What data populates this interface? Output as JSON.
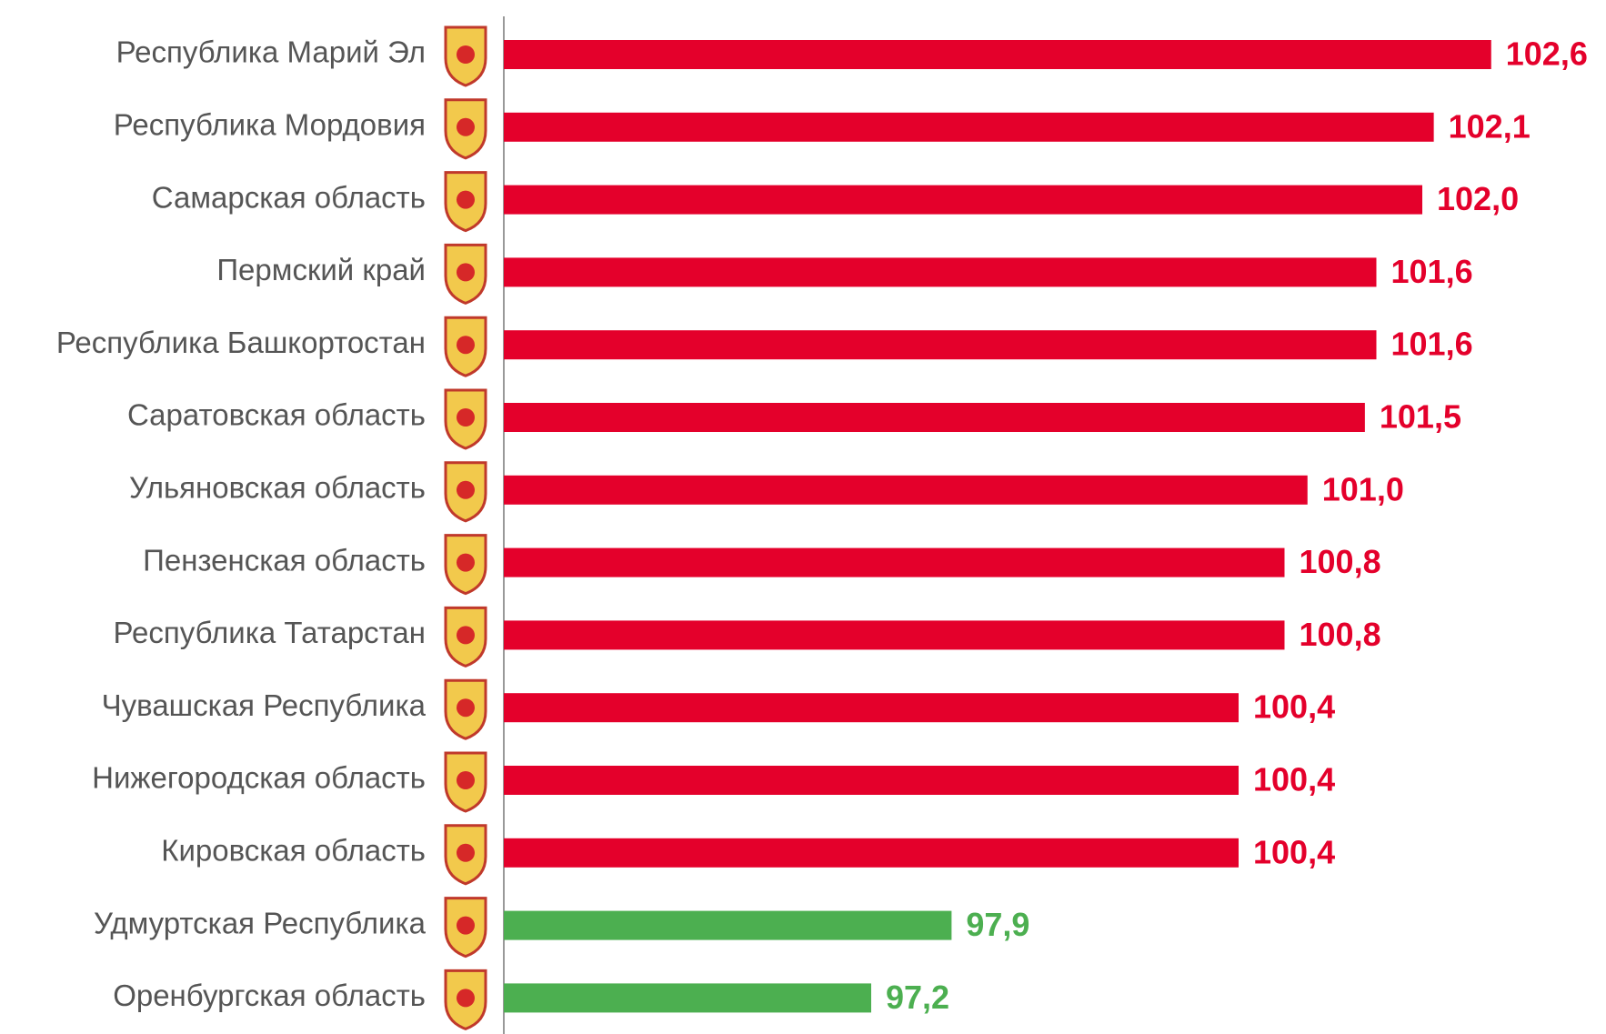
{
  "chart_data": {
    "type": "bar",
    "orientation": "horizontal",
    "categories": [
      "Республика Марий Эл",
      "Республика Мордовия",
      "Самарская область",
      "Пермский край",
      "Республика Башкортостан",
      "Саратовская область",
      "Ульяновская область",
      "Пензенская область",
      "Республика Татарстан",
      "Чувашская Республика",
      "Нижегородская область",
      "Кировская область",
      "Удмуртская Республика",
      "Оренбургская область"
    ],
    "values": [
      102.6,
      102.1,
      102.0,
      101.6,
      101.6,
      101.5,
      101.0,
      100.8,
      100.8,
      100.4,
      100.4,
      100.4,
      97.9,
      97.2
    ],
    "value_labels": [
      "102,6",
      "102,1",
      "102,0",
      "101,6",
      "101,6",
      "101,5",
      "101,0",
      "100,8",
      "100,8",
      "100,4",
      "100,4",
      "100,4",
      "97,9",
      "97,2"
    ],
    "colors": [
      "#e4002b",
      "#e4002b",
      "#e4002b",
      "#e4002b",
      "#e4002b",
      "#e4002b",
      "#e4002b",
      "#e4002b",
      "#e4002b",
      "#e4002b",
      "#e4002b",
      "#e4002b",
      "#4caf50",
      "#4caf50"
    ],
    "xlim": [
      94,
      103.6
    ]
  }
}
